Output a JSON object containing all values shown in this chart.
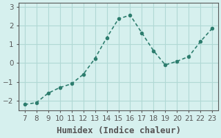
{
  "x": [
    7,
    8,
    9,
    10,
    11,
    12,
    13,
    14,
    15,
    16,
    17,
    18,
    19,
    20,
    21,
    22,
    23
  ],
  "y": [
    -2.2,
    -2.1,
    -1.6,
    -1.3,
    -1.1,
    -0.6,
    0.25,
    1.35,
    2.35,
    2.55,
    1.6,
    0.65,
    -0.1,
    0.1,
    0.35,
    1.15,
    1.85
  ],
  "xlabel": "Humidex (Indice chaleur)",
  "line_color": "#2d7d6e",
  "bg_color": "#d6f0ee",
  "grid_color": "#b0d8d4",
  "axis_color": "#555555",
  "ylim": [
    -2.5,
    3.2
  ],
  "yticks": [
    -2,
    -1,
    0,
    1,
    2,
    3
  ],
  "xticks": [
    7,
    8,
    9,
    10,
    11,
    12,
    13,
    14,
    15,
    16,
    17,
    18,
    19,
    20,
    21,
    22,
    23
  ],
  "marker": "o",
  "markersize": 3,
  "linewidth": 1.2,
  "xlabel_fontsize": 9,
  "tick_fontsize": 7.5
}
